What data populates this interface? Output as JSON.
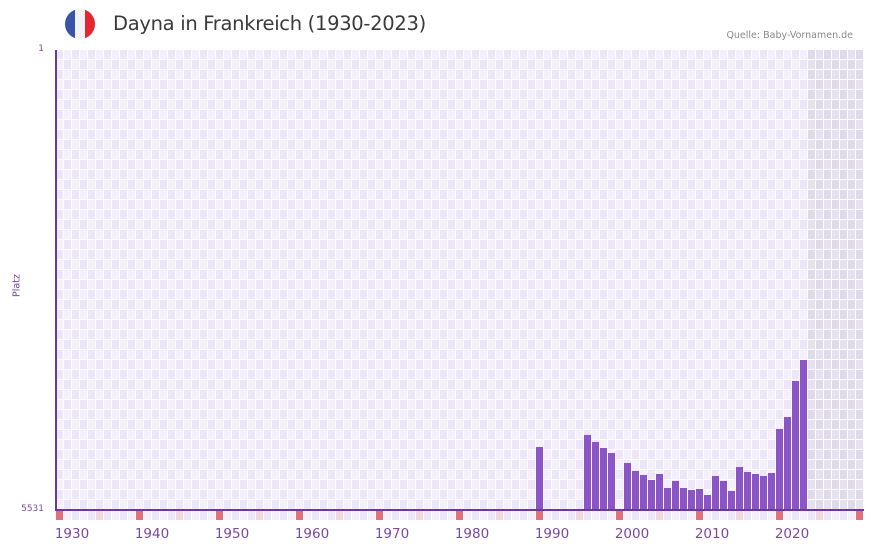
{
  "header": {
    "title": "Dayna in Frankreich (1930-2023)",
    "source": "Quelle: Baby-Vornamen.de",
    "flag_icon": "france-flag-icon",
    "flag_colors": [
      "#3a55a8",
      "#f2f2f4",
      "#e5252f"
    ]
  },
  "colors": {
    "bar": "#8b55c6",
    "axis": "#6a3a9a",
    "label": "#7a4a9e",
    "grid_light": "#f3f0fb",
    "grid_dark": "#ece6f8",
    "forecast_light": "#e6e1ef",
    "forecast_dark": "#dfd9ea",
    "decade_marker": "#e0707a",
    "half_decade_marker": "#f2d6e0"
  },
  "chart_data": {
    "type": "bar",
    "title": "Dayna in Frankreich (1930-2023)",
    "xlabel": "",
    "ylabel": "Platz",
    "y_axis_inverted": true,
    "ylim": [
      5531,
      1
    ],
    "y_tick_labels": [
      "1",
      "5531"
    ],
    "x_range": [
      1930,
      2030
    ],
    "x_tick_labels": [
      "1930",
      "1940",
      "1950",
      "1960",
      "1970",
      "1980",
      "1990",
      "2000",
      "2010",
      "2020"
    ],
    "grid": true,
    "shaded_region": {
      "from": 2024,
      "to": 2030,
      "note": "no data (future)"
    },
    "legend": null,
    "categories": [
      1990,
      1996,
      1997,
      1998,
      1999,
      2001,
      2002,
      2003,
      2004,
      2005,
      2006,
      2007,
      2008,
      2009,
      2010,
      2011,
      2012,
      2013,
      2014,
      2015,
      2016,
      2017,
      2018,
      2019,
      2020,
      2021,
      2022,
      2023
    ],
    "values": [
      4774,
      4629,
      4714,
      4786,
      4846,
      4966,
      5062,
      5110,
      5170,
      5098,
      5267,
      5182,
      5267,
      5291,
      5279,
      5351,
      5122,
      5182,
      5303,
      5014,
      5074,
      5098,
      5122,
      5086,
      4557,
      4413,
      3980,
      3728
    ]
  }
}
